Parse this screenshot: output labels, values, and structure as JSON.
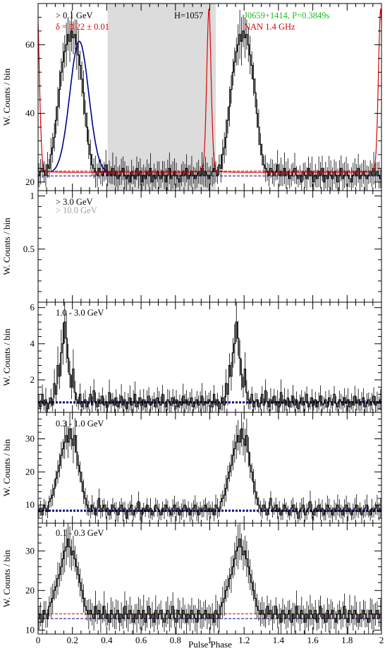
{
  "xaxis": {
    "label": "Pulse Phase",
    "range": [
      0,
      2
    ],
    "ticks": [
      "0",
      "0.2",
      "0.4",
      "0.6",
      "0.8",
      "1",
      "1.2",
      "1.4",
      "1.6",
      "1.8",
      "2"
    ]
  },
  "chart_data": [
    {
      "type": "step",
      "panel": "top",
      "ylabel": "W. Counts / bin",
      "ylim": [
        17.5,
        72
      ],
      "yticks": [
        20,
        40,
        60
      ],
      "annotations": {
        "energy": "> 0.1 GeV",
        "htest": "H=1057",
        "delta": "δ = 0.22 ± 0.01",
        "pulsar": "J0659+1414, P=0.3849s",
        "radio": "NAN 1.4 GHz"
      },
      "offpulse_phase": [
        0.405,
        1.035
      ],
      "background_level": 22.5,
      "background_band": [
        21.8,
        23.2
      ],
      "profile_one_cycle": [
        22,
        23,
        24,
        23,
        22,
        25,
        24,
        28,
        30,
        33,
        38,
        42,
        47,
        52,
        55,
        58,
        60,
        63,
        61,
        64,
        62,
        63,
        60,
        57,
        54,
        50,
        46,
        40,
        36,
        31,
        28,
        25,
        24,
        23,
        22,
        24,
        23,
        22,
        23,
        25,
        22,
        23,
        22,
        24,
        22,
        23,
        21,
        22,
        23,
        24,
        22,
        21,
        22,
        20,
        23,
        22,
        21,
        24,
        22,
        23,
        20,
        22,
        21,
        23,
        22,
        24,
        20,
        22,
        21,
        23,
        22,
        21,
        23,
        22,
        20,
        22,
        24,
        21,
        22,
        23,
        22,
        21,
        20,
        22,
        23,
        22,
        24,
        21,
        22,
        23,
        22,
        21,
        22,
        23,
        22,
        24,
        22,
        23,
        22,
        21
      ],
      "radio_peak_phase": 0.995,
      "radio_peak_value": 70.5,
      "gaussian_peak_phase": 0.24,
      "gaussian_peak_value": 61
    },
    {
      "type": "empty",
      "panel": "band-3gev",
      "ylabel": "W. Counts / bin",
      "ylim": [
        0,
        1.05
      ],
      "yticks": [
        0.5,
        1
      ],
      "legend": [
        "> 3.0 GeV",
        "> 10.0 GeV"
      ]
    },
    {
      "type": "step",
      "panel": "band-1-3gev",
      "label": "1.0 - 3.0 GeV",
      "ylabel": "W. Counts / bin",
      "ylim": [
        0.2,
        6.3
      ],
      "yticks": [
        2,
        4,
        6
      ],
      "background_level": 0.75,
      "profile_one_cycle": [
        0.8,
        0.5,
        1.2,
        0.6,
        0.9,
        0.4,
        0.7,
        1.0,
        0.6,
        1.8,
        1.2,
        2.8,
        2.2,
        3.5,
        4.0,
        5.2,
        4.3,
        3.2,
        2.3,
        1.6,
        2.6,
        1.3,
        0.9,
        0.7,
        1.2,
        0.5,
        0.8,
        0.9,
        0.5,
        0.7,
        1.2,
        0.6,
        1.4,
        0.8,
        0.5,
        0.9,
        0.7,
        1.1,
        0.6,
        0.8,
        0.5,
        1.3,
        0.7,
        0.9,
        0.6,
        1.0,
        0.5,
        0.8,
        1.1,
        0.6,
        0.9,
        0.4,
        0.7,
        1.0,
        0.6,
        0.8,
        1.2,
        0.5,
        0.7,
        1.0,
        0.6,
        0.9,
        0.5,
        0.8,
        1.1,
        0.6,
        0.7,
        0.9,
        0.5,
        1.0,
        0.8,
        0.6,
        1.2,
        0.7,
        0.5,
        0.9,
        0.8,
        0.6,
        1.0,
        0.7,
        0.9,
        0.5,
        0.8,
        0.6,
        1.1,
        0.7,
        0.9,
        0.6,
        0.8,
        1.0,
        0.5,
        0.7,
        0.9,
        0.6,
        0.8,
        1.1,
        0.6,
        0.8,
        0.7,
        0.9
      ]
    },
    {
      "type": "step",
      "panel": "band-0.3-1gev",
      "label": "0.3 - 1.0 GeV",
      "ylabel": "W. Counts / bin",
      "ylim": [
        4.5,
        38
      ],
      "yticks": [
        10,
        20,
        30
      ],
      "background_level": 8.3,
      "profile_one_cycle": [
        8,
        9,
        7,
        10,
        9,
        8,
        11,
        12,
        13,
        15,
        18,
        20,
        22,
        25,
        27,
        29,
        31,
        29,
        33,
        30,
        28,
        31,
        26,
        22,
        20,
        17,
        14,
        12,
        10,
        9,
        8,
        10,
        9,
        7,
        9,
        12,
        8,
        9,
        10,
        8,
        9,
        7,
        8,
        10,
        9,
        8,
        7,
        9,
        10,
        8,
        9,
        6,
        8,
        9,
        10,
        7,
        8,
        9,
        11,
        8,
        7,
        9,
        8,
        10,
        8,
        9,
        7,
        8,
        10,
        9,
        8,
        7,
        9,
        8,
        10,
        9,
        8,
        7,
        9,
        10,
        8,
        9,
        7,
        8,
        9,
        10,
        8,
        9,
        7,
        8,
        9,
        10,
        8,
        7,
        9,
        8,
        9,
        10,
        8,
        9
      ]
    },
    {
      "type": "step",
      "panel": "band-0.1-0.3gev",
      "label": "0.1 - 0.3 GeV",
      "ylabel": "W. Counts / bin",
      "ylim": [
        9,
        37
      ],
      "yticks": [
        10,
        20,
        30
      ],
      "background_level": 13.5,
      "background_band": [
        12.9,
        14.1
      ],
      "profile_one_cycle": [
        13,
        14,
        12,
        15,
        14,
        13,
        16,
        17,
        18,
        20,
        21,
        23,
        24,
        26,
        28,
        30,
        31,
        33,
        31,
        29,
        30,
        28,
        26,
        24,
        22,
        20,
        18,
        16,
        15,
        14,
        15,
        14,
        13,
        16,
        14,
        15,
        13,
        14,
        16,
        13,
        14,
        12,
        15,
        14,
        13,
        14,
        15,
        12,
        14,
        13,
        16,
        14,
        13,
        15,
        14,
        12,
        14,
        13,
        15,
        14,
        13,
        15,
        12,
        14,
        16,
        13,
        14,
        12,
        15,
        13,
        14,
        15,
        13,
        12,
        14,
        15,
        13,
        14,
        16,
        13,
        12,
        15,
        14,
        13,
        15,
        14,
        12,
        14,
        13,
        15,
        14,
        13,
        12,
        15,
        14,
        13,
        14,
        15,
        13,
        14
      ]
    }
  ],
  "colors": {
    "profile": "#000000",
    "fit": "#000088",
    "radio": "#e00000",
    "band_label_green": "#22bb22",
    "offpulse_fill": "#dcdcdc",
    "secondary_label": "#a0a0a0",
    "background_line": "#00008c"
  }
}
